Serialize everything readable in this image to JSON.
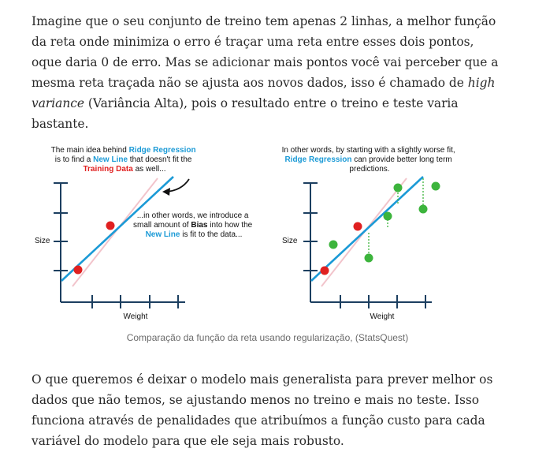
{
  "article": {
    "para1_a": "Imagine que o seu conjunto de treino tem apenas 2 linhas, a melhor função da reta onde minimiza o erro é traçar uma reta entre esses dois pontos, oque daria 0 de erro. Mas se adicionar mais pontos você vai perceber que a mesma reta traçada não se ajusta aos novos dados, isso é chamado de ",
    "para1_em": "high variance",
    "para1_b": " (Variância Alta), pois o resultado entre o treino e teste varia bastante.",
    "para2": "O que queremos é deixar o modelo mais generalista para prever melhor os dados que não temos, se ajustando menos no treino e mais no teste. Isso funciona através de penalidades que atribuímos a função custo para cada variável do modelo para que ele seja mais robusto."
  },
  "figure": {
    "caption": "Comparação da função da reta usando regularização, (StatsQuest)",
    "colors": {
      "blue": "#1b9ad6",
      "red": "#e02020",
      "green": "#3cb43c",
      "pink": "#f2c4cb",
      "axis": "#1c3f60"
    },
    "left": {
      "note_top": {
        "l1_a": "The main idea behind ",
        "l1_b": "Ridge Regression",
        "l2_a": "is to find a ",
        "l2_b": "New Line",
        "l2_c": " that doesn't fit the",
        "l3_a": "Training Data",
        "l3_b": " as well..."
      },
      "note_mid": {
        "l1": "...in other words, we introduce a",
        "l2_a": "small amount of ",
        "l2_b": "Bias",
        "l2_c": " into how the",
        "l3_a": "New Line",
        "l3_b": " is fit to the data..."
      },
      "ylabel": "Size",
      "xlabel": "Weight"
    },
    "right": {
      "note_top": {
        "l1": "In other words, by starting with a slightly worse fit,",
        "l2_a": "Ridge Regression",
        "l2_b": " can provide better long term",
        "l3": "predictions."
      },
      "ylabel": "Size",
      "xlabel": "Weight"
    }
  }
}
